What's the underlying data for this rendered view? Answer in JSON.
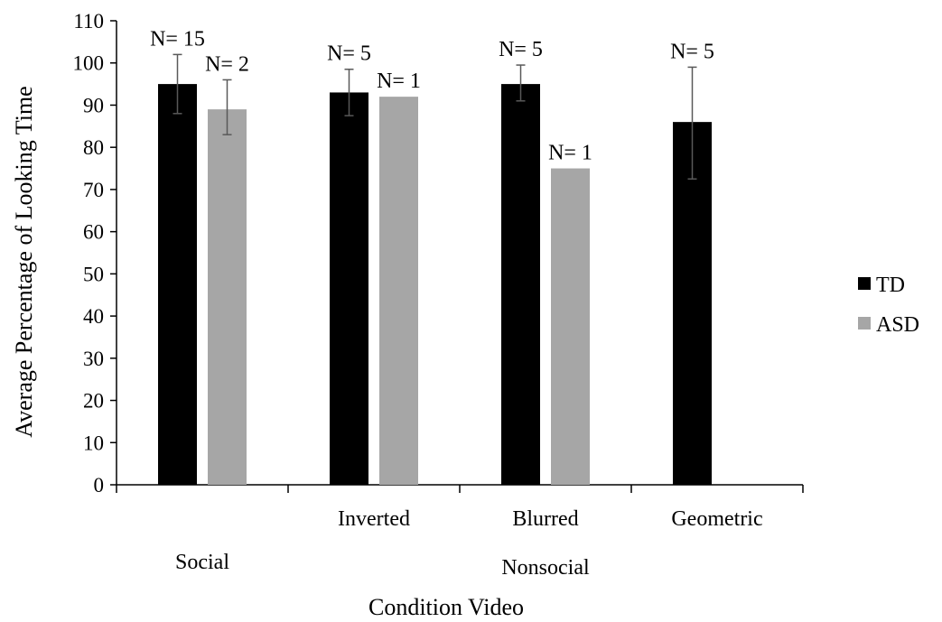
{
  "chart_data": {
    "type": "bar",
    "title": "",
    "xlabel": "Condition Video",
    "ylabel": "Average Percentage of Looking Time",
    "ylim": [
      0,
      110
    ],
    "ytick_step": 10,
    "groups": [
      {
        "label": "Social",
        "categories": [
          "Social"
        ]
      },
      {
        "label": "Nonsocial",
        "categories": [
          "Inverted",
          "Blurred",
          "Geometric"
        ]
      }
    ],
    "categories": [
      "Social",
      "Inverted",
      "Blurred",
      "Geometric"
    ],
    "category_tick_labels": [
      "",
      "Inverted",
      "Blurred",
      "Geometric"
    ],
    "series": [
      {
        "name": "TD",
        "color": "#000000",
        "values": [
          95,
          93,
          95,
          86
        ],
        "err_low": [
          88,
          87.5,
          91,
          72.5
        ],
        "err_high": [
          102,
          98.5,
          99.5,
          99
        ],
        "n_labels": [
          "N= 15",
          "N= 5",
          "N= 5",
          "N= 5"
        ]
      },
      {
        "name": "ASD",
        "color": "#a6a6a6",
        "values": [
          89,
          92,
          75,
          null
        ],
        "err_low": [
          83,
          null,
          null,
          null
        ],
        "err_high": [
          96,
          null,
          null,
          null
        ],
        "n_labels": [
          "N= 2",
          "N= 1",
          "N= 1",
          ""
        ]
      }
    ],
    "legend_position": "right",
    "grid": false
  }
}
